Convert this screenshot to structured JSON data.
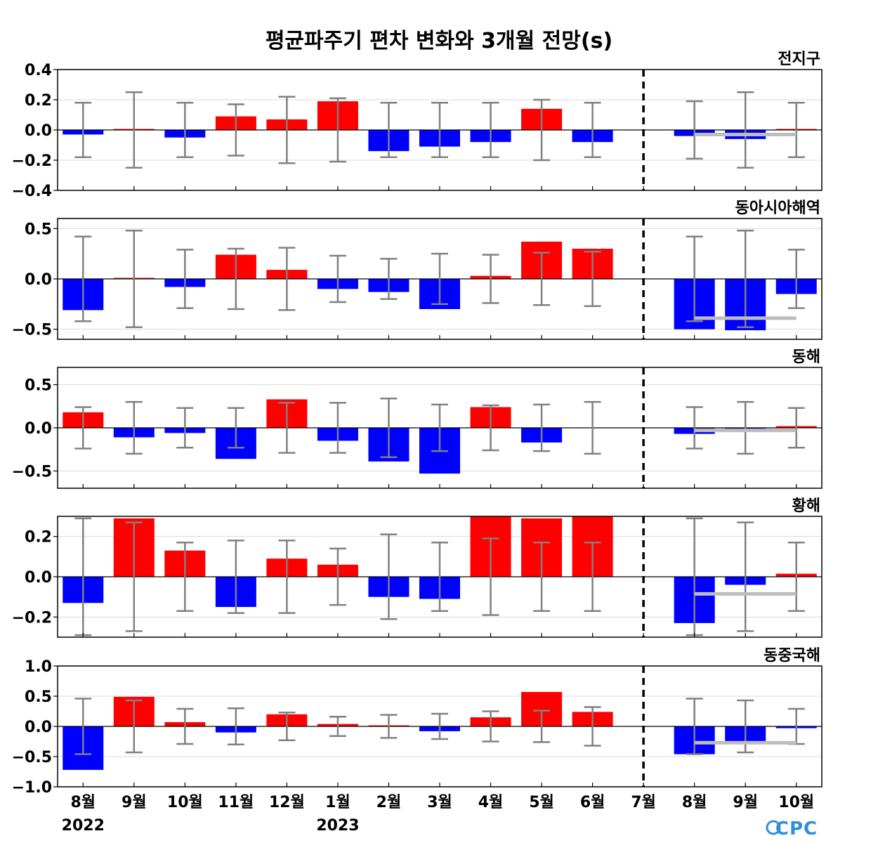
{
  "title": "평균파주기 편차 변화와 3개월 전망(s)",
  "logo": "CPC",
  "colors": {
    "positive": "#ff0000",
    "negative": "#0000ff",
    "errorbar": "#808080",
    "outlook_range": "#bdbdbd",
    "grid": "#d9d9d9"
  },
  "chart_data": {
    "type": "bar",
    "categories": [
      "8월",
      "9월",
      "10월",
      "11월",
      "12월",
      "1월",
      "2월",
      "3월",
      "4월",
      "5월",
      "6월",
      "7월",
      "8월",
      "9월",
      "10월"
    ],
    "year_labels": [
      {
        "index": 0,
        "label": "2022"
      },
      {
        "index": 5,
        "label": "2023"
      }
    ],
    "forecast_divider_after_index": 11,
    "outlook_indices": [
      12,
      13,
      14
    ],
    "panels": [
      {
        "name": "전지구",
        "ylim": [
          -0.4,
          0.4
        ],
        "yticks": [
          -0.4,
          -0.2,
          0.0,
          0.2,
          0.4
        ],
        "ytick_labels": [
          "−0.4",
          "−0.2",
          "0.0",
          "0.2",
          "0.4"
        ],
        "values": [
          -0.03,
          0.005,
          -0.05,
          0.09,
          0.07,
          0.19,
          -0.14,
          -0.11,
          -0.08,
          0.14,
          -0.08,
          0.0,
          -0.04,
          -0.06,
          0.005
        ],
        "error": [
          0.18,
          0.25,
          0.18,
          0.17,
          0.22,
          0.21,
          0.18,
          0.18,
          0.18,
          0.2,
          0.18,
          null,
          0.19,
          0.25,
          0.18
        ],
        "outlook_range": -0.03
      },
      {
        "name": "동아시아해역",
        "ylim": [
          -0.6,
          0.6
        ],
        "yticks": [
          -0.5,
          0.0,
          0.5
        ],
        "ytick_labels": [
          "−0.5",
          "0.0",
          "0.5"
        ],
        "values": [
          -0.31,
          0.005,
          -0.08,
          0.24,
          0.09,
          -0.1,
          -0.13,
          -0.3,
          0.03,
          0.37,
          0.3,
          0.0,
          -0.5,
          -0.51,
          -0.15
        ],
        "error": [
          0.42,
          0.48,
          0.29,
          0.3,
          0.31,
          0.23,
          0.2,
          0.25,
          0.24,
          0.26,
          0.27,
          null,
          0.42,
          0.48,
          0.29
        ],
        "outlook_range": -0.39
      },
      {
        "name": "동해",
        "ylim": [
          -0.7,
          0.7
        ],
        "yticks": [
          -0.5,
          0.0,
          0.5
        ],
        "ytick_labels": [
          "−0.5",
          "0.0",
          "0.5"
        ],
        "values": [
          0.18,
          -0.11,
          -0.06,
          -0.36,
          0.33,
          -0.15,
          -0.39,
          -0.53,
          0.24,
          -0.17,
          0.0,
          0.0,
          -0.07,
          -0.03,
          0.02
        ],
        "error": [
          0.24,
          0.3,
          0.23,
          0.23,
          0.29,
          0.29,
          0.34,
          0.27,
          0.26,
          0.27,
          0.3,
          null,
          0.24,
          0.3,
          0.23
        ],
        "outlook_range": -0.03
      },
      {
        "name": "황해",
        "ylim": [
          -0.3,
          0.3
        ],
        "yticks": [
          -0.2,
          0.0,
          0.2
        ],
        "ytick_labels": [
          "−0.2",
          "0.0",
          "0.2"
        ],
        "values": [
          -0.13,
          0.29,
          0.13,
          -0.15,
          0.09,
          0.06,
          -0.1,
          -0.11,
          0.3,
          0.29,
          0.3,
          0.0,
          -0.23,
          -0.04,
          0.015
        ],
        "error": [
          0.29,
          0.27,
          0.17,
          0.18,
          0.18,
          0.14,
          0.21,
          0.17,
          0.19,
          0.17,
          0.17,
          null,
          0.29,
          0.27,
          0.17
        ],
        "outlook_range": -0.085
      },
      {
        "name": "동중국해",
        "ylim": [
          -1.0,
          1.0
        ],
        "yticks": [
          -1.0,
          -0.5,
          0.0,
          0.5,
          1.0
        ],
        "ytick_labels": [
          "−1.0",
          "−0.5",
          "0.0",
          "0.5",
          "1.0"
        ],
        "values": [
          -0.72,
          0.49,
          0.07,
          -0.1,
          0.2,
          0.04,
          0.01,
          -0.08,
          0.15,
          0.57,
          0.24,
          0.0,
          -0.46,
          -0.25,
          -0.03
        ],
        "error": [
          0.46,
          0.43,
          0.29,
          0.3,
          0.23,
          0.16,
          0.19,
          0.21,
          0.25,
          0.26,
          0.32,
          null,
          0.46,
          0.43,
          0.29
        ],
        "outlook_range": -0.27
      }
    ]
  }
}
